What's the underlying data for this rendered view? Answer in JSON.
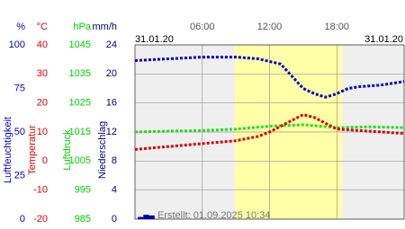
{
  "chart_data": {
    "type": "line",
    "date_left": "31.01.20",
    "date_right": "31.01.20",
    "footer": "Erstellt: 01.09.2025 10:34",
    "xlim": [
      0,
      24
    ],
    "xticks": [
      {
        "value": 6,
        "label": "06:00"
      },
      {
        "value": 12,
        "label": "12:00"
      },
      {
        "value": 18,
        "label": "18:00"
      }
    ],
    "daylight": [
      8.9,
      18.5
    ],
    "grid": true,
    "axes": [
      {
        "unit": "%",
        "label": "Luftfeuchtigkeit",
        "color": "#0000cc",
        "ylim": [
          0,
          100
        ],
        "yticks": [
          0,
          25,
          50,
          75,
          100
        ]
      },
      {
        "unit": "°C",
        "label": "Temperatur",
        "color": "#dd0000",
        "ylim": [
          -20,
          40
        ],
        "yticks": [
          -20,
          -10,
          0,
          10,
          20,
          30,
          40
        ]
      },
      {
        "unit": "hPa",
        "label": "Luftdruck",
        "color": "#00cc00",
        "ylim": [
          985,
          1045
        ],
        "yticks": [
          985,
          995,
          1005,
          1015,
          1025,
          1035,
          1045
        ]
      },
      {
        "unit": "mm/h",
        "label": "Niederschlag",
        "color": "#000080",
        "ylim": [
          0,
          24
        ],
        "yticks": [
          0,
          4,
          8,
          12,
          16,
          20,
          24
        ]
      }
    ],
    "series": [
      {
        "type": "line",
        "axis": 2,
        "color": "#22dd22",
        "x": [
          0,
          3,
          6,
          9,
          12,
          15,
          18,
          21,
          24
        ],
        "values": [
          1015,
          1015.3,
          1015.5,
          1016,
          1017,
          1017.5,
          1016.5,
          1016.8,
          1016.5
        ]
      },
      {
        "type": "line",
        "axis": 1,
        "color": "#dd0000",
        "x": [
          0,
          3,
          6,
          9,
          11,
          12,
          13,
          14,
          15,
          16,
          17,
          18,
          20,
          22,
          24
        ],
        "values": [
          4,
          5,
          6,
          7,
          8.5,
          10,
          12,
          14,
          16,
          15,
          13,
          11,
          10.5,
          10,
          9.5
        ]
      },
      {
        "type": "line",
        "axis": 0,
        "color": "#0000cc",
        "x": [
          0,
          3,
          6,
          9,
          11,
          13,
          14,
          15,
          16,
          17,
          18,
          19,
          20,
          22,
          24
        ],
        "values": [
          91,
          92,
          93,
          93,
          92,
          89,
          82,
          75,
          72,
          70,
          72,
          75,
          76,
          77,
          79
        ]
      },
      {
        "type": "bar",
        "axis": 3,
        "color": "#0000aa",
        "x": [
          0.5,
          1,
          1.5
        ],
        "values": [
          0.3,
          0.6,
          0.5
        ]
      }
    ]
  }
}
